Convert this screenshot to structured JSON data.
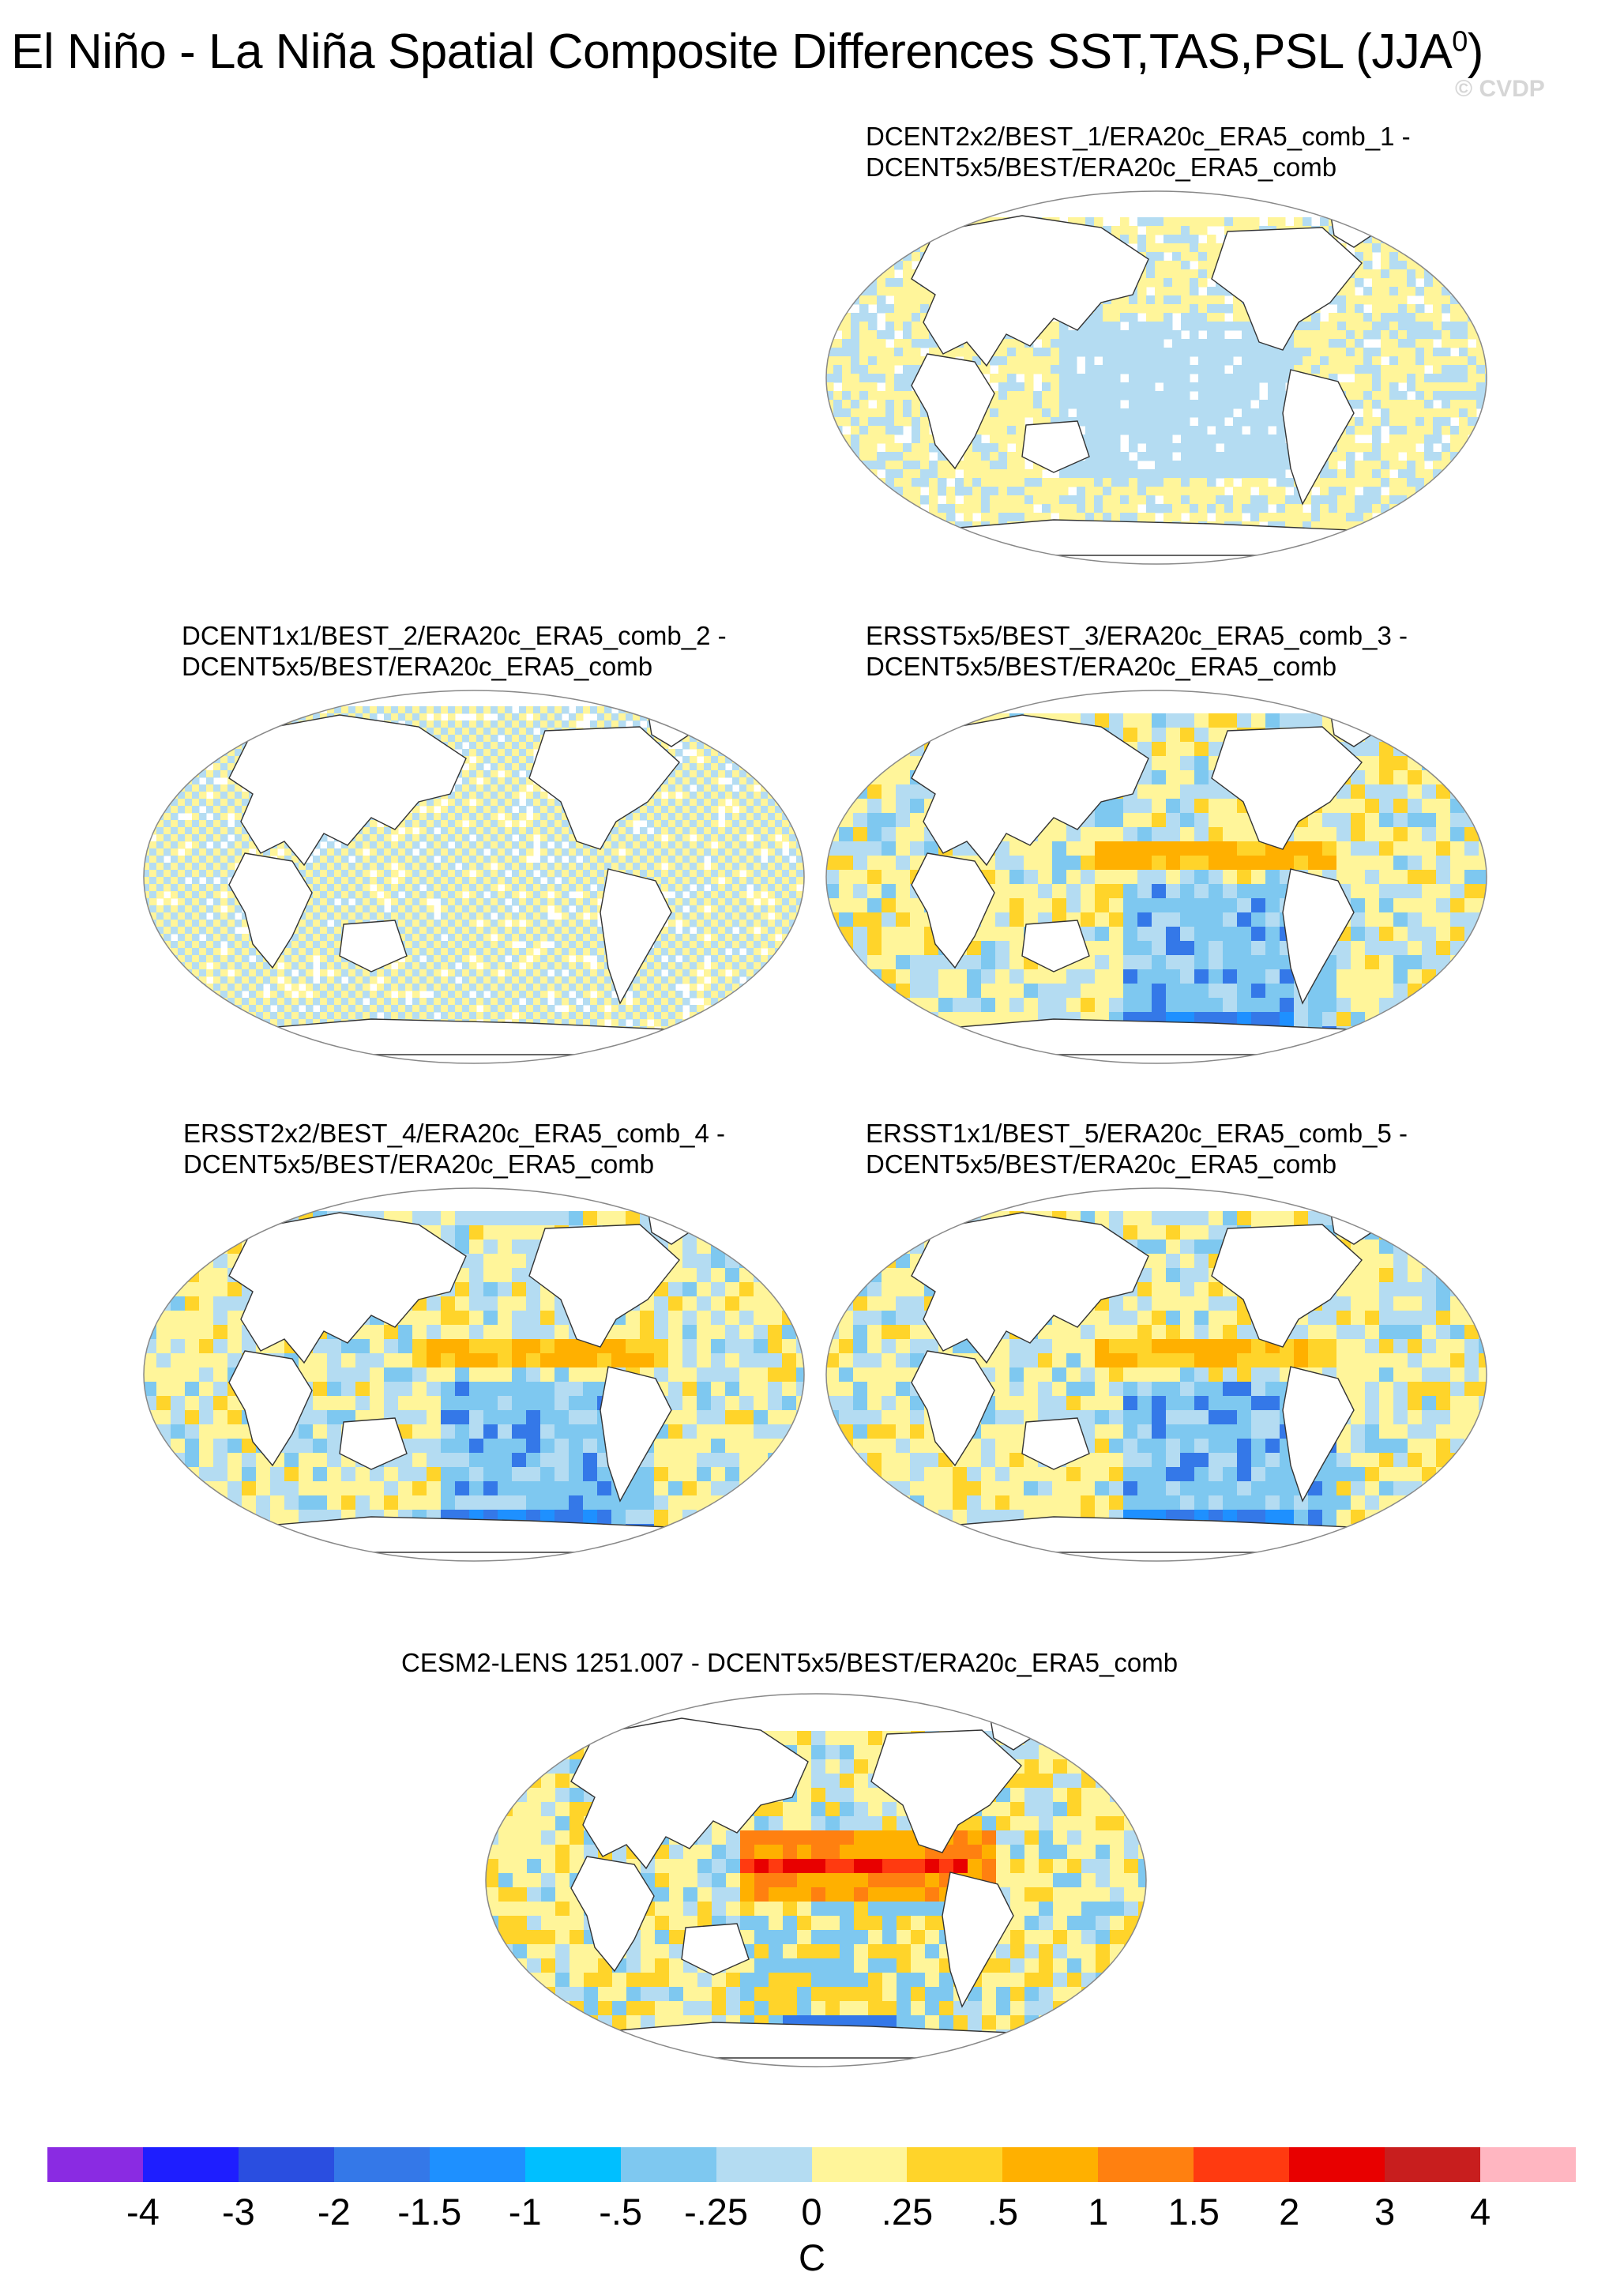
{
  "title": "El Niño - La Niña Spatial Composite Differences SST,TAS,PSL (JJA",
  "title_superscript": "0",
  "title_close": ")",
  "watermark": "© CVDP",
  "panels": [
    {
      "line1": "DCENT2x2/BEST_1/ERA20c_ERA5_comb_1 -",
      "line2": "DCENT5x5/BEST/ERA20c_ERA5_comb",
      "pattern": "stripes"
    },
    {
      "line1": "DCENT1x1/BEST_2/ERA20c_ERA5_comb_2 -",
      "line2": "DCENT5x5/BEST/ERA20c_ERA5_comb",
      "pattern": "grid"
    },
    {
      "line1": "ERSST5x5/BEST_3/ERA20c_ERA5_comb_3 -",
      "line2": "DCENT5x5/BEST/ERA20c_ERA5_comb",
      "pattern": "ersst"
    },
    {
      "line1": "ERSST2x2/BEST_4/ERA20c_ERA5_comb_4 -",
      "line2": "DCENT5x5/BEST/ERA20c_ERA5_comb",
      "pattern": "ersst"
    },
    {
      "line1": "ERSST1x1/BEST_5/ERA20c_ERA5_comb_5 -",
      "line2": "DCENT5x5/BEST/ERA20c_ERA5_comb",
      "pattern": "ersst"
    },
    {
      "line1": "CESM2-LENS 1251.007 - DCENT5x5/BEST/ERA20c_ERA5_comb",
      "line2": "",
      "pattern": "cesm"
    }
  ],
  "colorbar": {
    "colors": [
      "#8a2be2",
      "#1e1eff",
      "#2a4ee0",
      "#3478e8",
      "#1e90ff",
      "#00bfff",
      "#7ec8f0",
      "#b4dcf2",
      "#fff59a",
      "#ffd42a",
      "#ffb000",
      "#ff8010",
      "#ff3a10",
      "#e80000",
      "#c81e1e",
      "#ffb6c1"
    ],
    "labels": [
      "-4",
      "-3",
      "-2",
      "-1.5",
      "-1",
      "-.5",
      "-.25",
      "0",
      ".25",
      ".5",
      "1",
      "1.5",
      "2",
      "3",
      "4"
    ],
    "unit": "C"
  }
}
